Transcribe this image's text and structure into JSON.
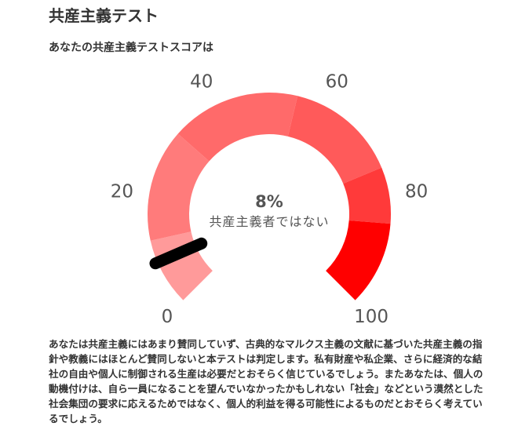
{
  "page": {
    "title": "共産主義テスト",
    "subtitle": "あなたの共産主義テストスコアは"
  },
  "gauge": {
    "score_percent": 8,
    "score_text": "8%",
    "score_caption": "共産主義者ではない",
    "min": 0,
    "max": 100,
    "ticks": [
      "0",
      "20",
      "40",
      "60",
      "80",
      "100"
    ],
    "segment_colors": [
      "#ff9a9a",
      "#ff7b7b",
      "#ff6a6a",
      "#ff5a5a",
      "#ff3a3a",
      "#ff0000"
    ],
    "needle_color": "#000000"
  },
  "description": {
    "text": "あなたは共産主義にはあまり賛同していず、古典的なマルクス主義の文献に基づいた共産主義の指針や教義にはほとんど賛同しないと本テストは判定します。私有財産や私企業、さらに経済的な結社の自由や個人に制御される生産は必要だとおそらく信じているでしょう。またあなたは、個人の動機付けは、自ら一員になることを望んでいなかったかもしれない「社会」などという漠然とした社会集団の要求に応えるためではなく、個人的利益を得る可能性によるものだとおそらく考えているでしょう。"
  }
}
